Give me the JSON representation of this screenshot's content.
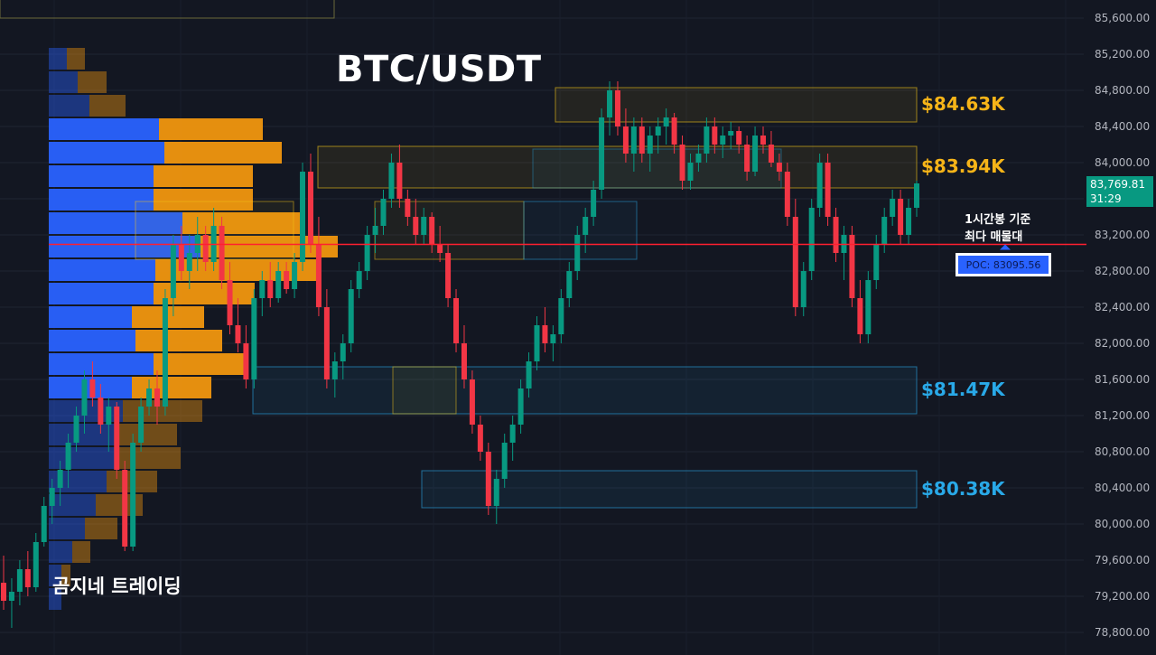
{
  "title": "BTC/USDT",
  "watermark": "곰지네 트레이딩",
  "poc_note": {
    "line1": "1시간봉 기준",
    "line2": "최다 매물대"
  },
  "poc_label": "POC: 83095.56",
  "current_price": {
    "price": "83,769.81",
    "countdown": "31:29"
  },
  "colors": {
    "bg": "#131722",
    "up": "#089981",
    "down": "#f23645",
    "vp_blue": "#2962ff",
    "vp_orange": "#f0960f",
    "resistance": "#f5c518",
    "support": "#29a9e8",
    "poc_line": "#ff1f2f"
  },
  "chart_data": {
    "type": "candlestick",
    "symbol": "BTC/USDT",
    "ylim": [
      78600,
      85800
    ],
    "y_ticks": [
      "78,800.00",
      "79,200.00",
      "79,600.00",
      "80,000.00",
      "80,400.00",
      "80,800.00",
      "81,200.00",
      "81,600.00",
      "82,000.00",
      "82,400.00",
      "82,800.00",
      "83,200.00",
      "83,600.00",
      "84,000.00",
      "84,400.00",
      "84,800.00",
      "85,200.00",
      "85,600.00"
    ],
    "y_tick_values": [
      78800,
      79200,
      79600,
      80000,
      80400,
      80800,
      81200,
      81600,
      82000,
      82400,
      82800,
      83200,
      83600,
      84000,
      84400,
      84800,
      85200,
      85600
    ],
    "poc_price": 83095.56,
    "levels": [
      {
        "label": "$84.63K",
        "type": "resistance",
        "top": 84830,
        "bottom": 84450
      },
      {
        "label": "$83.94K",
        "type": "resistance",
        "top": 84180,
        "bottom": 83720
      },
      {
        "label": "$81.47K",
        "type": "support",
        "top": 81740,
        "bottom": 81220
      },
      {
        "label": "$80.38K",
        "type": "support",
        "top": 80590,
        "bottom": 80180
      }
    ],
    "volume_profile": [
      {
        "price": 85150,
        "buy": 20,
        "sell": 20
      },
      {
        "price": 84890,
        "buy": 32,
        "sell": 32
      },
      {
        "price": 84630,
        "buy": 45,
        "sell": 40
      },
      {
        "price": 84370,
        "buy": 122,
        "sell": 115
      },
      {
        "price": 84110,
        "buy": 128,
        "sell": 130
      },
      {
        "price": 83850,
        "buy": 116,
        "sell": 110
      },
      {
        "price": 83590,
        "buy": 116,
        "sell": 110
      },
      {
        "price": 83330,
        "buy": 148,
        "sell": 132
      },
      {
        "price": 83070,
        "buy": 168,
        "sell": 152
      },
      {
        "price": 82810,
        "buy": 118,
        "sell": 180
      },
      {
        "price": 82550,
        "buy": 116,
        "sell": 112
      },
      {
        "price": 82290,
        "buy": 92,
        "sell": 80
      },
      {
        "price": 82030,
        "buy": 96,
        "sell": 96
      },
      {
        "price": 81770,
        "buy": 116,
        "sell": 104
      },
      {
        "price": 81510,
        "buy": 92,
        "sell": 88
      },
      {
        "price": 81250,
        "buy": 82,
        "sell": 88
      },
      {
        "price": 80990,
        "buy": 76,
        "sell": 66
      },
      {
        "price": 80730,
        "buy": 74,
        "sell": 72
      },
      {
        "price": 80470,
        "buy": 64,
        "sell": 56
      },
      {
        "price": 80210,
        "buy": 52,
        "sell": 52
      },
      {
        "price": 79950,
        "buy": 40,
        "sell": 36
      },
      {
        "price": 79690,
        "buy": 26,
        "sell": 20
      },
      {
        "price": 79430,
        "buy": 14,
        "sell": 10
      },
      {
        "price": 79170,
        "buy": 14,
        "sell": 0
      }
    ],
    "candles": [
      [
        79350,
        79650,
        79050,
        79150
      ],
      [
        79150,
        79400,
        78850,
        79250
      ],
      [
        79250,
        79600,
        79100,
        79500
      ],
      [
        79500,
        79700,
        79200,
        79300
      ],
      [
        79300,
        79900,
        79250,
        79800
      ],
      [
        79800,
        80300,
        79750,
        80200
      ],
      [
        80200,
        80500,
        80000,
        80400
      ],
      [
        80400,
        80700,
        80200,
        80600
      ],
      [
        80600,
        81000,
        80400,
        80900
      ],
      [
        80900,
        81300,
        80800,
        81200
      ],
      [
        81200,
        81700,
        81000,
        81600
      ],
      [
        81600,
        81800,
        81300,
        81400
      ],
      [
        81400,
        81550,
        81000,
        81100
      ],
      [
        81100,
        81400,
        80800,
        81300
      ],
      [
        81300,
        81350,
        80500,
        80600
      ],
      [
        80600,
        80700,
        79700,
        79750
      ],
      [
        79750,
        81000,
        79700,
        80900
      ],
      [
        80900,
        81400,
        80800,
        81300
      ],
      [
        81300,
        81600,
        81200,
        81500
      ],
      [
        81500,
        81700,
        81100,
        81300
      ],
      [
        81300,
        82600,
        81200,
        82500
      ],
      [
        82500,
        83200,
        82300,
        83100
      ],
      [
        83100,
        83300,
        82700,
        82800
      ],
      [
        82800,
        83200,
        82600,
        83000
      ],
      [
        83000,
        83400,
        82800,
        83200
      ],
      [
        83200,
        83300,
        82800,
        82900
      ],
      [
        82900,
        83500,
        82800,
        83300
      ],
      [
        83300,
        83400,
        82600,
        82700
      ],
      [
        82700,
        82900,
        82100,
        82200
      ],
      [
        82200,
        82500,
        81900,
        82000
      ],
      [
        82000,
        82200,
        81500,
        81600
      ],
      [
        81600,
        82600,
        81500,
        82500
      ],
      [
        82500,
        82800,
        82300,
        82700
      ],
      [
        82700,
        82900,
        82400,
        82500
      ],
      [
        82500,
        82900,
        82450,
        82800
      ],
      [
        82800,
        82900,
        82550,
        82600
      ],
      [
        82600,
        83000,
        82500,
        82900
      ],
      [
        82900,
        84000,
        82800,
        83900
      ],
      [
        83900,
        84100,
        83000,
        83100
      ],
      [
        83100,
        83400,
        82300,
        82400
      ],
      [
        82400,
        82600,
        81500,
        81600
      ],
      [
        81600,
        81900,
        81400,
        81800
      ],
      [
        81800,
        82100,
        81600,
        82000
      ],
      [
        82000,
        82700,
        81900,
        82600
      ],
      [
        82600,
        82900,
        82500,
        82800
      ],
      [
        82800,
        83300,
        82700,
        83200
      ],
      [
        83200,
        83500,
        83000,
        83300
      ],
      [
        83300,
        83700,
        83200,
        83600
      ],
      [
        83600,
        84100,
        83500,
        84000
      ],
      [
        84000,
        84200,
        83500,
        83600
      ],
      [
        83600,
        83700,
        83300,
        83400
      ],
      [
        83400,
        83600,
        83100,
        83200
      ],
      [
        83200,
        83500,
        83100,
        83400
      ],
      [
        83400,
        83450,
        83000,
        83100
      ],
      [
        83100,
        83300,
        82900,
        83000
      ],
      [
        83000,
        83100,
        82400,
        82500
      ],
      [
        82500,
        82600,
        81900,
        82000
      ],
      [
        82000,
        82200,
        81500,
        81600
      ],
      [
        81600,
        81700,
        81000,
        81100
      ],
      [
        81100,
        81200,
        80700,
        80800
      ],
      [
        80800,
        80900,
        80100,
        80200
      ],
      [
        80200,
        80600,
        80000,
        80500
      ],
      [
        80500,
        81000,
        80400,
        80900
      ],
      [
        80900,
        81200,
        80700,
        81100
      ],
      [
        81100,
        81600,
        81000,
        81500
      ],
      [
        81500,
        81900,
        81400,
        81800
      ],
      [
        81800,
        82300,
        81700,
        82200
      ],
      [
        82200,
        82400,
        81900,
        82000
      ],
      [
        82000,
        82200,
        81800,
        82100
      ],
      [
        82100,
        82600,
        82000,
        82500
      ],
      [
        82500,
        82900,
        82400,
        82800
      ],
      [
        82800,
        83300,
        82700,
        83200
      ],
      [
        83200,
        83500,
        83000,
        83400
      ],
      [
        83400,
        83800,
        83300,
        83700
      ],
      [
        83700,
        84600,
        83600,
        84500
      ],
      [
        84500,
        84900,
        84300,
        84800
      ],
      [
        84800,
        84900,
        84300,
        84400
      ],
      [
        84400,
        84600,
        84000,
        84100
      ],
      [
        84100,
        84500,
        83900,
        84400
      ],
      [
        84400,
        84500,
        84000,
        84100
      ],
      [
        84100,
        84400,
        83900,
        84300
      ],
      [
        84300,
        84500,
        84100,
        84400
      ],
      [
        84400,
        84600,
        84200,
        84500
      ],
      [
        84500,
        84550,
        84100,
        84200
      ],
      [
        84200,
        84300,
        83700,
        83800
      ],
      [
        83800,
        84100,
        83700,
        84000
      ],
      [
        84000,
        84200,
        83900,
        84100
      ],
      [
        84100,
        84500,
        84000,
        84400
      ],
      [
        84400,
        84500,
        84100,
        84200
      ],
      [
        84200,
        84400,
        84050,
        84300
      ],
      [
        84300,
        84450,
        84150,
        84350
      ],
      [
        84350,
        84400,
        84100,
        84200
      ],
      [
        84200,
        84300,
        83800,
        83900
      ],
      [
        83900,
        84400,
        83850,
        84300
      ],
      [
        84300,
        84400,
        84100,
        84200
      ],
      [
        84200,
        84350,
        83950,
        84000
      ],
      [
        84000,
        84100,
        83800,
        83900
      ],
      [
        83900,
        84000,
        83300,
        83400
      ],
      [
        83400,
        83600,
        82300,
        82400
      ],
      [
        82400,
        82900,
        82300,
        82800
      ],
      [
        82800,
        83600,
        82700,
        83500
      ],
      [
        83500,
        84100,
        83400,
        84000
      ],
      [
        84000,
        84100,
        83300,
        83400
      ],
      [
        83400,
        83500,
        82900,
        83000
      ],
      [
        83000,
        83300,
        82700,
        83200
      ],
      [
        83200,
        83300,
        82400,
        82500
      ],
      [
        82500,
        82700,
        82000,
        82100
      ],
      [
        82100,
        82800,
        82000,
        82700
      ],
      [
        82700,
        83200,
        82600,
        83100
      ],
      [
        83100,
        83500,
        83000,
        83400
      ],
      [
        83400,
        83700,
        83300,
        83600
      ],
      [
        83600,
        83700,
        83100,
        83200
      ],
      [
        83200,
        83600,
        83100,
        83500
      ],
      [
        83500,
        83800,
        83400,
        83770
      ]
    ]
  }
}
